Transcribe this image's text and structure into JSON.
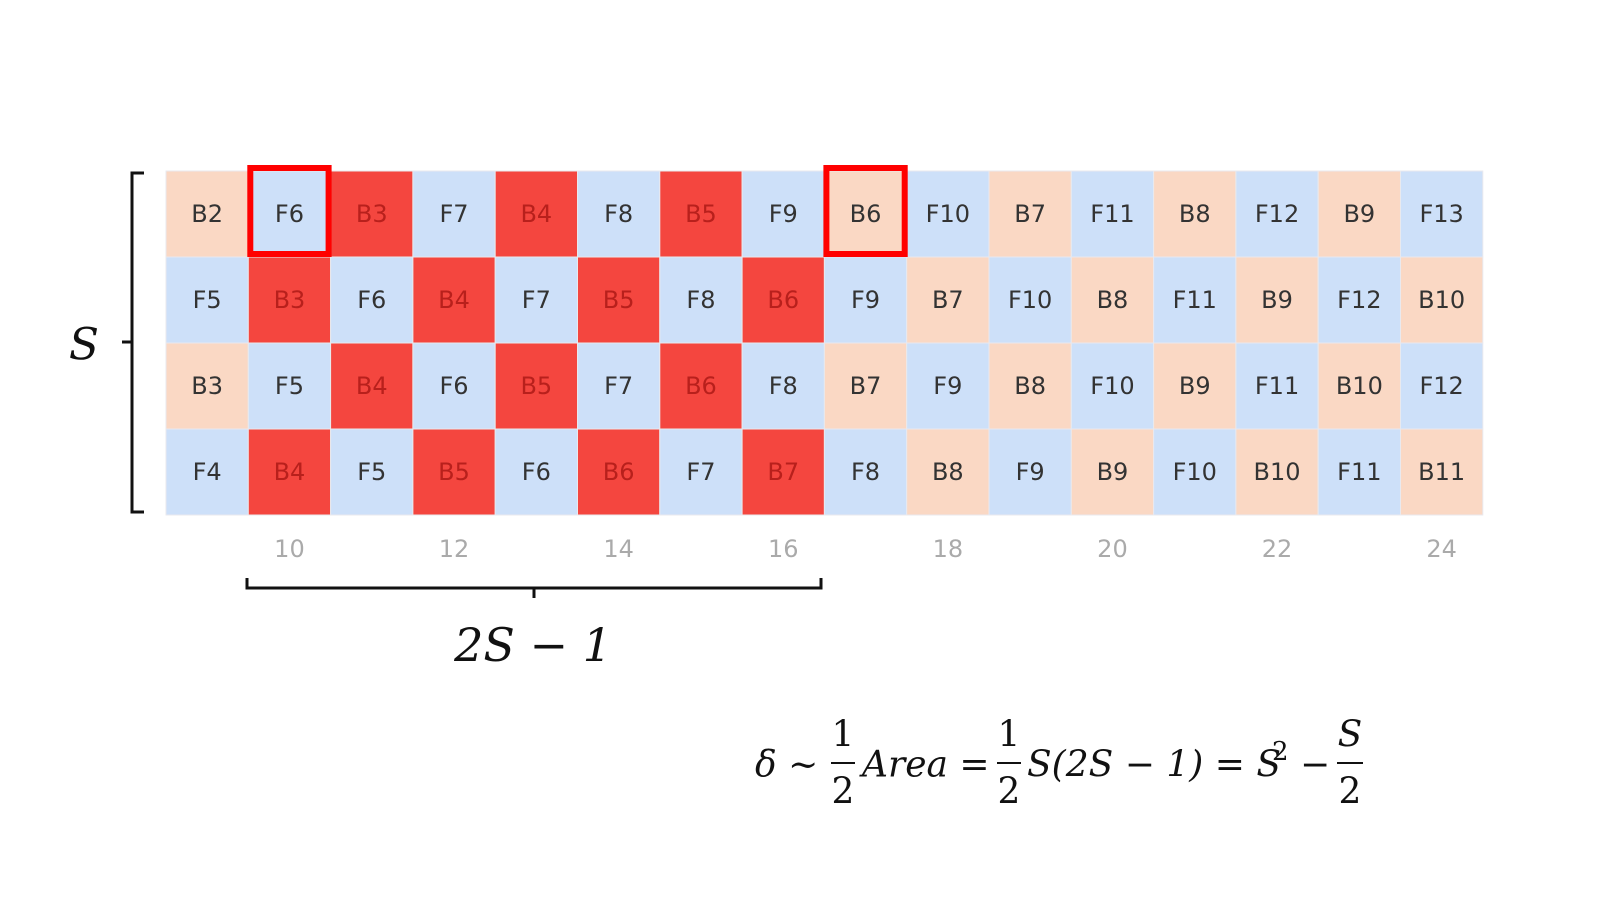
{
  "grid": {
    "rows": [
      [
        "B2",
        "F6",
        "B3",
        "F7",
        "B4",
        "F8",
        "B5",
        "F9",
        "B6",
        "F10",
        "B7",
        "F11",
        "B8",
        "F12",
        "B9",
        "F13"
      ],
      [
        "F5",
        "B3",
        "F6",
        "B4",
        "F7",
        "B5",
        "F8",
        "B6",
        "F9",
        "B7",
        "F10",
        "B8",
        "F11",
        "B9",
        "F12",
        "B10"
      ],
      [
        "B3",
        "F5",
        "B4",
        "F6",
        "B5",
        "F7",
        "B6",
        "F8",
        "B7",
        "F9",
        "B8",
        "F10",
        "B9",
        "F11",
        "B10",
        "F12"
      ],
      [
        "F4",
        "B4",
        "F5",
        "B5",
        "F6",
        "B6",
        "F7",
        "B7",
        "F8",
        "B8",
        "F9",
        "B9",
        "F10",
        "B10",
        "F11",
        "B11"
      ]
    ],
    "column_labels": [
      "10",
      "12",
      "14",
      "16",
      "18",
      "20",
      "22",
      "24"
    ]
  },
  "labels": {
    "rows_label": "S",
    "span_label": "2S − 1"
  },
  "formula": {
    "lhs": "δ ∼",
    "frac1_num": "1",
    "frac1_den": "2",
    "area": "Area =",
    "frac2_num": "1",
    "frac2_den": "2",
    "middle": "S(2S − 1) = S",
    "exponent": "2",
    "minus": "−",
    "frac3_num": "S",
    "frac3_den": "2"
  }
}
